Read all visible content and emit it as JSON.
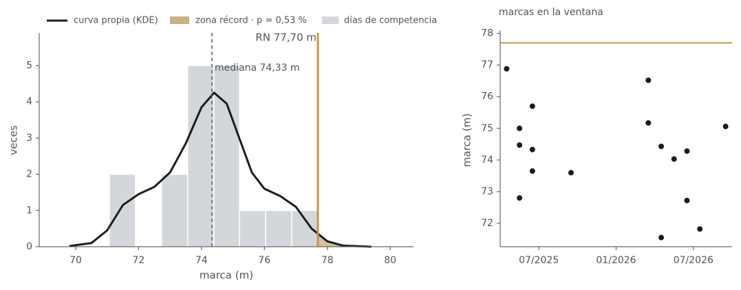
{
  "chart_data": [
    {
      "type": "histogram",
      "xlabel": "marca (m)",
      "ylabel": "veces",
      "xlim": [
        68.84,
        80.74
      ],
      "ylim": [
        0,
        5.9
      ],
      "xticks": [
        70,
        72,
        74,
        76,
        78,
        80
      ],
      "yticks": [
        0,
        1,
        2,
        3,
        4,
        5
      ],
      "bins": [
        71.07,
        71.9,
        72.73,
        73.56,
        74.39,
        75.21,
        76.04,
        76.87,
        77.7
      ],
      "counts": [
        2,
        0,
        2,
        5,
        5,
        1,
        1,
        1
      ],
      "hist_name": "días de competencia",
      "hist_color": "#d3d6da",
      "series": [
        {
          "name": "curva propia (KDE)",
          "color": "#1c1c1c",
          "x": [
            69.8,
            70.5,
            71,
            71.5,
            72,
            72.5,
            73,
            73.5,
            74,
            74.4,
            74.8,
            75.2,
            75.6,
            76,
            76.5,
            77,
            77.5,
            78,
            78.5,
            79.4
          ],
          "values": [
            0.02,
            0.1,
            0.45,
            1.15,
            1.45,
            1.65,
            2.05,
            2.85,
            3.85,
            4.25,
            3.95,
            3.0,
            2.05,
            1.6,
            1.4,
            1.1,
            0.5,
            0.15,
            0.03,
            0.0
          ]
        }
      ],
      "zone_name": "zona récord · p = 0,53 %",
      "zone_color": "#c9b183",
      "median": {
        "value": 74.33,
        "label": "mediana 74,33 m"
      },
      "record": {
        "value": 77.7,
        "label": "RN 77,70 m"
      },
      "record_color": "#c8963c"
    },
    {
      "type": "scatter",
      "title": "marcas en la ventana",
      "ylabel": "marca (m)",
      "xlim": [
        "2025-04",
        "2026-10"
      ],
      "ylim": [
        71.26,
        78.1
      ],
      "xticks": [
        {
          "value": "2025-07",
          "label": "07/2025"
        },
        {
          "value": "2026-01",
          "label": "01/2026"
        },
        {
          "value": "2026-07",
          "label": "07/2026"
        }
      ],
      "yticks": [
        72,
        73,
        74,
        75,
        76,
        77,
        78
      ],
      "color": "#1c1c1c",
      "x": [
        "2025-04",
        "2025-05",
        "2025-05",
        "2025-05",
        "2025-06",
        "2025-06",
        "2025-06",
        "2025-09",
        "2026-03",
        "2026-03",
        "2026-04",
        "2026-04",
        "2026-05",
        "2026-06",
        "2026-06",
        "2026-07",
        "2026-09"
      ],
      "values": [
        76.88,
        75.0,
        74.47,
        72.8,
        75.7,
        73.65,
        74.33,
        73.6,
        75.17,
        76.52,
        71.55,
        74.43,
        74.03,
        72.72,
        74.28,
        71.82,
        75.06
      ]
    }
  ]
}
